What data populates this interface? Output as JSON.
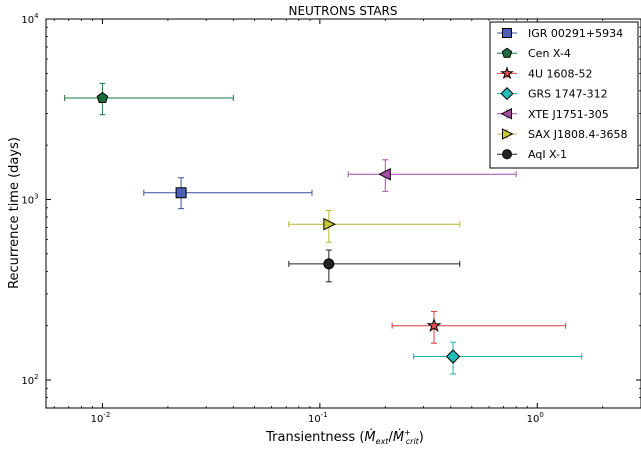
{
  "chart_data": {
    "type": "scatter",
    "title": "NEUTRONS STARS",
    "xlabel": "Transientness (",
    "xlabel_math": "Ṁ",
    "xlabel_sub1": "ext",
    "xlabel_sep": "/",
    "xlabel_math2": "Ṁ",
    "xlabel_sup2": "+",
    "xlabel_sub2": "crit",
    "xlabel_close": ")",
    "ylabel": "Recurrence time (days)",
    "x_scale": "log",
    "y_scale": "log",
    "xlim": [
      0.0055,
      3.0
    ],
    "ylim": [
      70,
      10000
    ],
    "x_ticks": [
      {
        "value": 0.01,
        "base": "10",
        "exp": "-2"
      },
      {
        "value": 0.1,
        "base": "10",
        "exp": "-1"
      },
      {
        "value": 1,
        "base": "10",
        "exp": "0"
      }
    ],
    "y_ticks": [
      {
        "value": 100,
        "base": "10",
        "exp": "2"
      },
      {
        "value": 1000,
        "base": "10",
        "exp": "3"
      },
      {
        "value": 10000,
        "base": "10",
        "exp": "4"
      }
    ],
    "grid": false,
    "legend_position": "top-right",
    "series": [
      {
        "name": "IGR 00291+5934",
        "marker": "square",
        "color": "#4a5fb4",
        "line_color": "#3a4f9a",
        "x": 0.023,
        "y": 1090,
        "x_err": [
          0.0155,
          0.092
        ],
        "y_err": [
          890,
          1320
        ]
      },
      {
        "name": "Cen X-4",
        "marker": "pentagon",
        "color": "#1e6b3c",
        "line_color": "#1e7a45",
        "x": 0.01,
        "y": 3650,
        "x_err": [
          0.0067,
          0.04
        ],
        "y_err": [
          2950,
          4400
        ]
      },
      {
        "name": "4U 1608-52",
        "marker": "star",
        "color": "#d9534f",
        "line_color": "#e03c3c",
        "x": 0.335,
        "y": 200,
        "x_err": [
          0.215,
          1.35
        ],
        "y_err": [
          160,
          240
        ]
      },
      {
        "name": "GRS 1747-312",
        "marker": "diamond",
        "color": "#1fbfb8",
        "line_color": "#17b5b0",
        "x": 0.41,
        "y": 135,
        "x_err": [
          0.27,
          1.6
        ],
        "y_err": [
          108,
          162
        ]
      },
      {
        "name": "XTE J1751-305",
        "marker": "triangle-left",
        "color": "#a64ca6",
        "line_color": "#a64ca6",
        "x": 0.2,
        "y": 1380,
        "x_err": [
          0.135,
          0.8
        ],
        "y_err": [
          1110,
          1660
        ]
      },
      {
        "name": "SAX J1808.4-3658",
        "marker": "triangle-right",
        "color": "#c8c832",
        "line_color": "#b8b82a",
        "x": 0.11,
        "y": 730,
        "x_err": [
          0.072,
          0.44
        ],
        "y_err": [
          580,
          870
        ]
      },
      {
        "name": "AqI X-1",
        "marker": "circle",
        "color": "#222222",
        "line_color": "#222222",
        "x": 0.11,
        "y": 440,
        "x_err": [
          0.072,
          0.44
        ],
        "y_err": [
          350,
          525
        ]
      }
    ]
  }
}
